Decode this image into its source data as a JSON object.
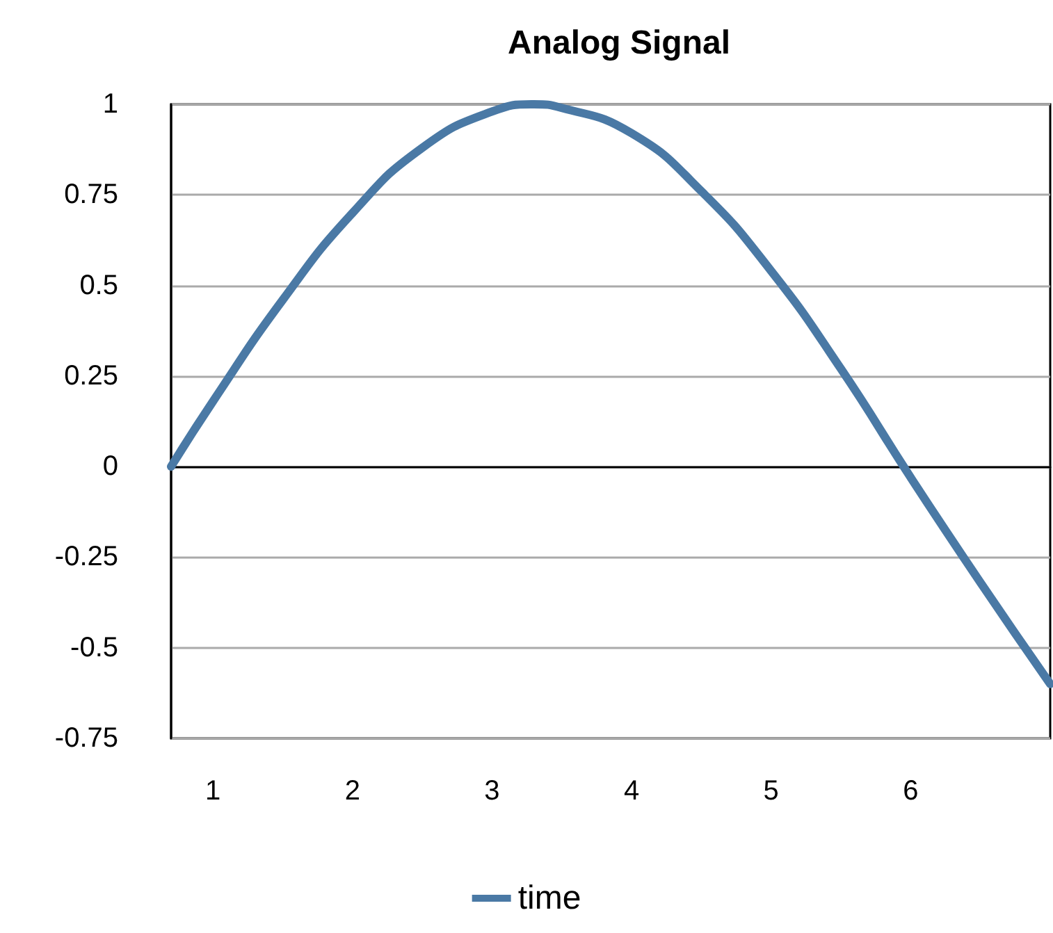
{
  "chart_data": {
    "type": "line",
    "title": "Analog Signal",
    "x": [
      0.7,
      1,
      1.5,
      2,
      2.5,
      3,
      3.3,
      3.5,
      4,
      4.5,
      5,
      5.5,
      6,
      6.5,
      7
    ],
    "series": [
      {
        "name": "time",
        "color": "#4a79a5",
        "values": [
          0,
          0.18,
          0.46,
          0.7,
          0.88,
          0.98,
          1,
          0.99,
          0.92,
          0.76,
          0.54,
          0.27,
          -0.03,
          -0.32,
          -0.6
        ]
      }
    ],
    "xlim": [
      0.7,
      7
    ],
    "xticks": [
      1,
      2,
      3,
      4,
      5,
      6
    ],
    "ylim": [
      -0.75,
      1
    ],
    "yticks": [
      -0.75,
      -0.5,
      -0.25,
      0,
      0.25,
      0.5,
      0.75,
      1
    ],
    "grid": "y",
    "legend": "bottom",
    "marker": "none",
    "line_style": "solid"
  }
}
